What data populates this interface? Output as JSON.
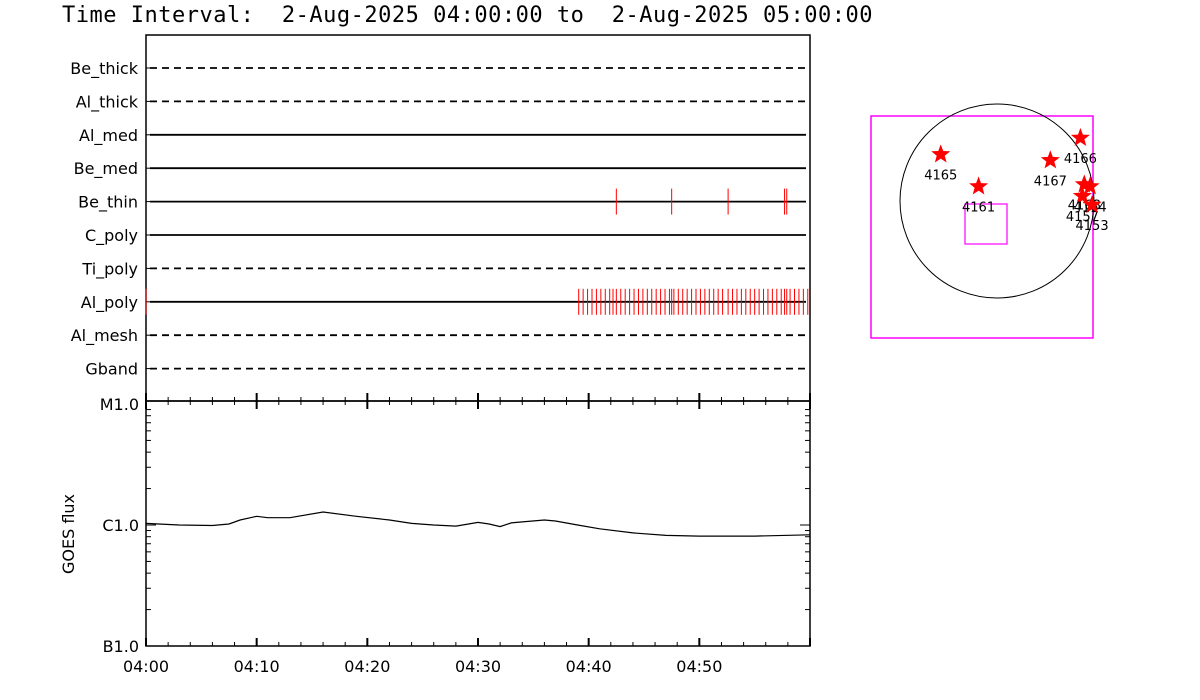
{
  "title": "Time Interval:  2-Aug-2025 04:00:00 to  2-Aug-2025 05:00:00",
  "colors": {
    "event": "#ff0000",
    "box": "#ff00ff",
    "axis": "#000000"
  },
  "chart_data": [
    {
      "type": "timeline",
      "x_ticks": [
        "04:00",
        "04:10",
        "04:20",
        "04:30",
        "04:40",
        "04:50"
      ],
      "xlim_minutes": [
        0,
        60
      ],
      "filters": [
        {
          "name": "Be_thick",
          "style": "dashed",
          "events": []
        },
        {
          "name": "Al_thick",
          "style": "dashed",
          "events": []
        },
        {
          "name": "Al_med",
          "style": "solid",
          "events": []
        },
        {
          "name": "Be_med",
          "style": "solid",
          "events": []
        },
        {
          "name": "Be_thin",
          "style": "solid",
          "events": [
            42.5,
            47.5,
            52.6,
            57.7,
            57.9
          ]
        },
        {
          "name": "C_poly",
          "style": "solid",
          "events": []
        },
        {
          "name": "Ti_poly",
          "style": "dashed",
          "events": []
        },
        {
          "name": "Al_poly",
          "style": "solid",
          "events": [
            0.0,
            39.1,
            39.5,
            39.9,
            40.3,
            40.7,
            41.1,
            41.5,
            41.9,
            42.2,
            42.5,
            42.9,
            43.3,
            43.7,
            44.1,
            44.5,
            44.9,
            45.3,
            45.7,
            46.1,
            46.5,
            46.9,
            47.3,
            47.5,
            47.7,
            48.1,
            48.5,
            48.9,
            49.3,
            49.7,
            50.1,
            50.5,
            50.9,
            51.3,
            51.7,
            52.1,
            52.6,
            53.0,
            53.4,
            53.8,
            54.2,
            54.6,
            55.0,
            55.4,
            55.8,
            56.2,
            56.6,
            57.0,
            57.4,
            57.7,
            57.9,
            58.2,
            58.6,
            59.0,
            59.4,
            59.8
          ]
        },
        {
          "name": "Al_mesh",
          "style": "dashed",
          "events": []
        },
        {
          "name": "Gband",
          "style": "dashed",
          "events": []
        }
      ]
    },
    {
      "type": "line",
      "ylabel": "GOES flux",
      "y_scale": "log",
      "y_ticks": [
        "M1.0",
        "C1.0",
        "B1.0"
      ],
      "ylim": [
        "B1.0",
        "M1.0"
      ],
      "x_ticks": [
        "04:00",
        "04:10",
        "04:20",
        "04:30",
        "04:40",
        "04:50"
      ],
      "series": [
        {
          "x": [
            0,
            3,
            6,
            7.5,
            8.5,
            10,
            11,
            13,
            16,
            19,
            22,
            24,
            26,
            28,
            30,
            31,
            32,
            33,
            34,
            36,
            37,
            39,
            41,
            44,
            47,
            50,
            55,
            60
          ],
          "y": [
            1.03e-06,
            1e-06,
            9.9e-07,
            1.02e-06,
            1.1e-06,
            1.18e-06,
            1.15e-06,
            1.15e-06,
            1.28e-06,
            1.18e-06,
            1.1e-06,
            1.03e-06,
            1e-06,
            9.8e-07,
            1.05e-06,
            1.02e-06,
            9.7e-07,
            1.04e-06,
            1.06e-06,
            1.1e-06,
            1.08e-06,
            1e-06,
            9.3e-07,
            8.6e-07,
            8.2e-07,
            8.1e-07,
            8.1e-07,
            8.3e-07
          ]
        }
      ]
    },
    {
      "type": "scatter",
      "description_free": true,
      "regions": [
        {
          "label": "4165",
          "x": -0.58,
          "y": 0.48
        },
        {
          "label": "4167",
          "x": 0.55,
          "y": 0.42
        },
        {
          "label": "4166",
          "x": 0.86,
          "y": 0.65
        },
        {
          "label": "4161",
          "x": -0.19,
          "y": 0.15
        },
        {
          "label": "4168",
          "x": 0.9,
          "y": 0.17
        },
        {
          "label": "4157",
          "x": 0.88,
          "y": 0.05
        },
        {
          "label": "4164",
          "x": 0.96,
          "y": 0.15
        },
        {
          "label": "4153",
          "x": 0.98,
          "y": -0.04
        }
      ]
    }
  ]
}
